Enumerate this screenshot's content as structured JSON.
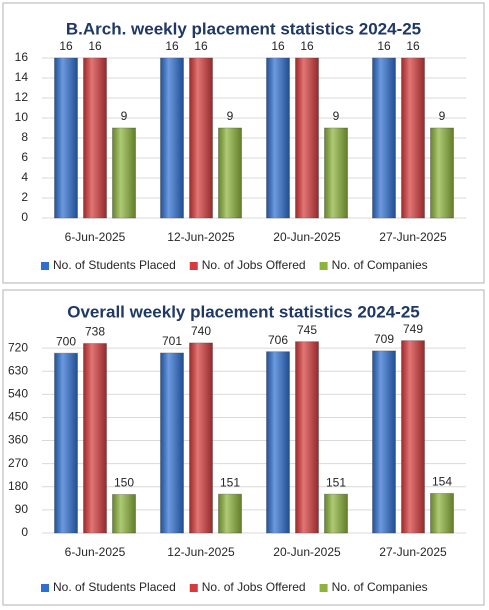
{
  "chart_data": [
    {
      "type": "bar",
      "title": "B.Arch. weekly placement statistics 2024-25",
      "categories": [
        "6-Jun-2025",
        "12-Jun-2025",
        "20-Jun-2025",
        "27-Jun-2025"
      ],
      "series": [
        {
          "name": "No. of Students Placed",
          "color": "#2e6fd1",
          "values": [
            16,
            16,
            16,
            16
          ]
        },
        {
          "name": "No. of Jobs Offered",
          "color": "#d63a3a",
          "values": [
            16,
            16,
            16,
            16
          ]
        },
        {
          "name": "No. of Companies",
          "color": "#8cb43a",
          "values": [
            9,
            9,
            9,
            9
          ]
        }
      ],
      "ylim": [
        0,
        16
      ],
      "yticks": [
        0,
        2,
        4,
        6,
        8,
        10,
        12,
        14,
        16
      ],
      "grid": true,
      "legend": "bottom"
    },
    {
      "type": "bar",
      "title": "Overall weekly placement statistics 2024-25",
      "categories": [
        "6-Jun-2025",
        "12-Jun-2025",
        "20-Jun-2025",
        "27-Jun-2025"
      ],
      "series": [
        {
          "name": "No. of Students Placed",
          "color": "#2e6fd1",
          "values": [
            700,
            701,
            706,
            709
          ]
        },
        {
          "name": "No. of Jobs Offered",
          "color": "#d63a3a",
          "values": [
            738,
            740,
            745,
            749
          ]
        },
        {
          "name": "No. of Companies",
          "color": "#8cb43a",
          "values": [
            150,
            151,
            151,
            154
          ]
        }
      ],
      "ylim": [
        0,
        810
      ],
      "yticks": [
        0,
        90,
        180,
        270,
        360,
        450,
        540,
        630,
        720
      ],
      "grid": true,
      "legend": "bottom"
    }
  ]
}
